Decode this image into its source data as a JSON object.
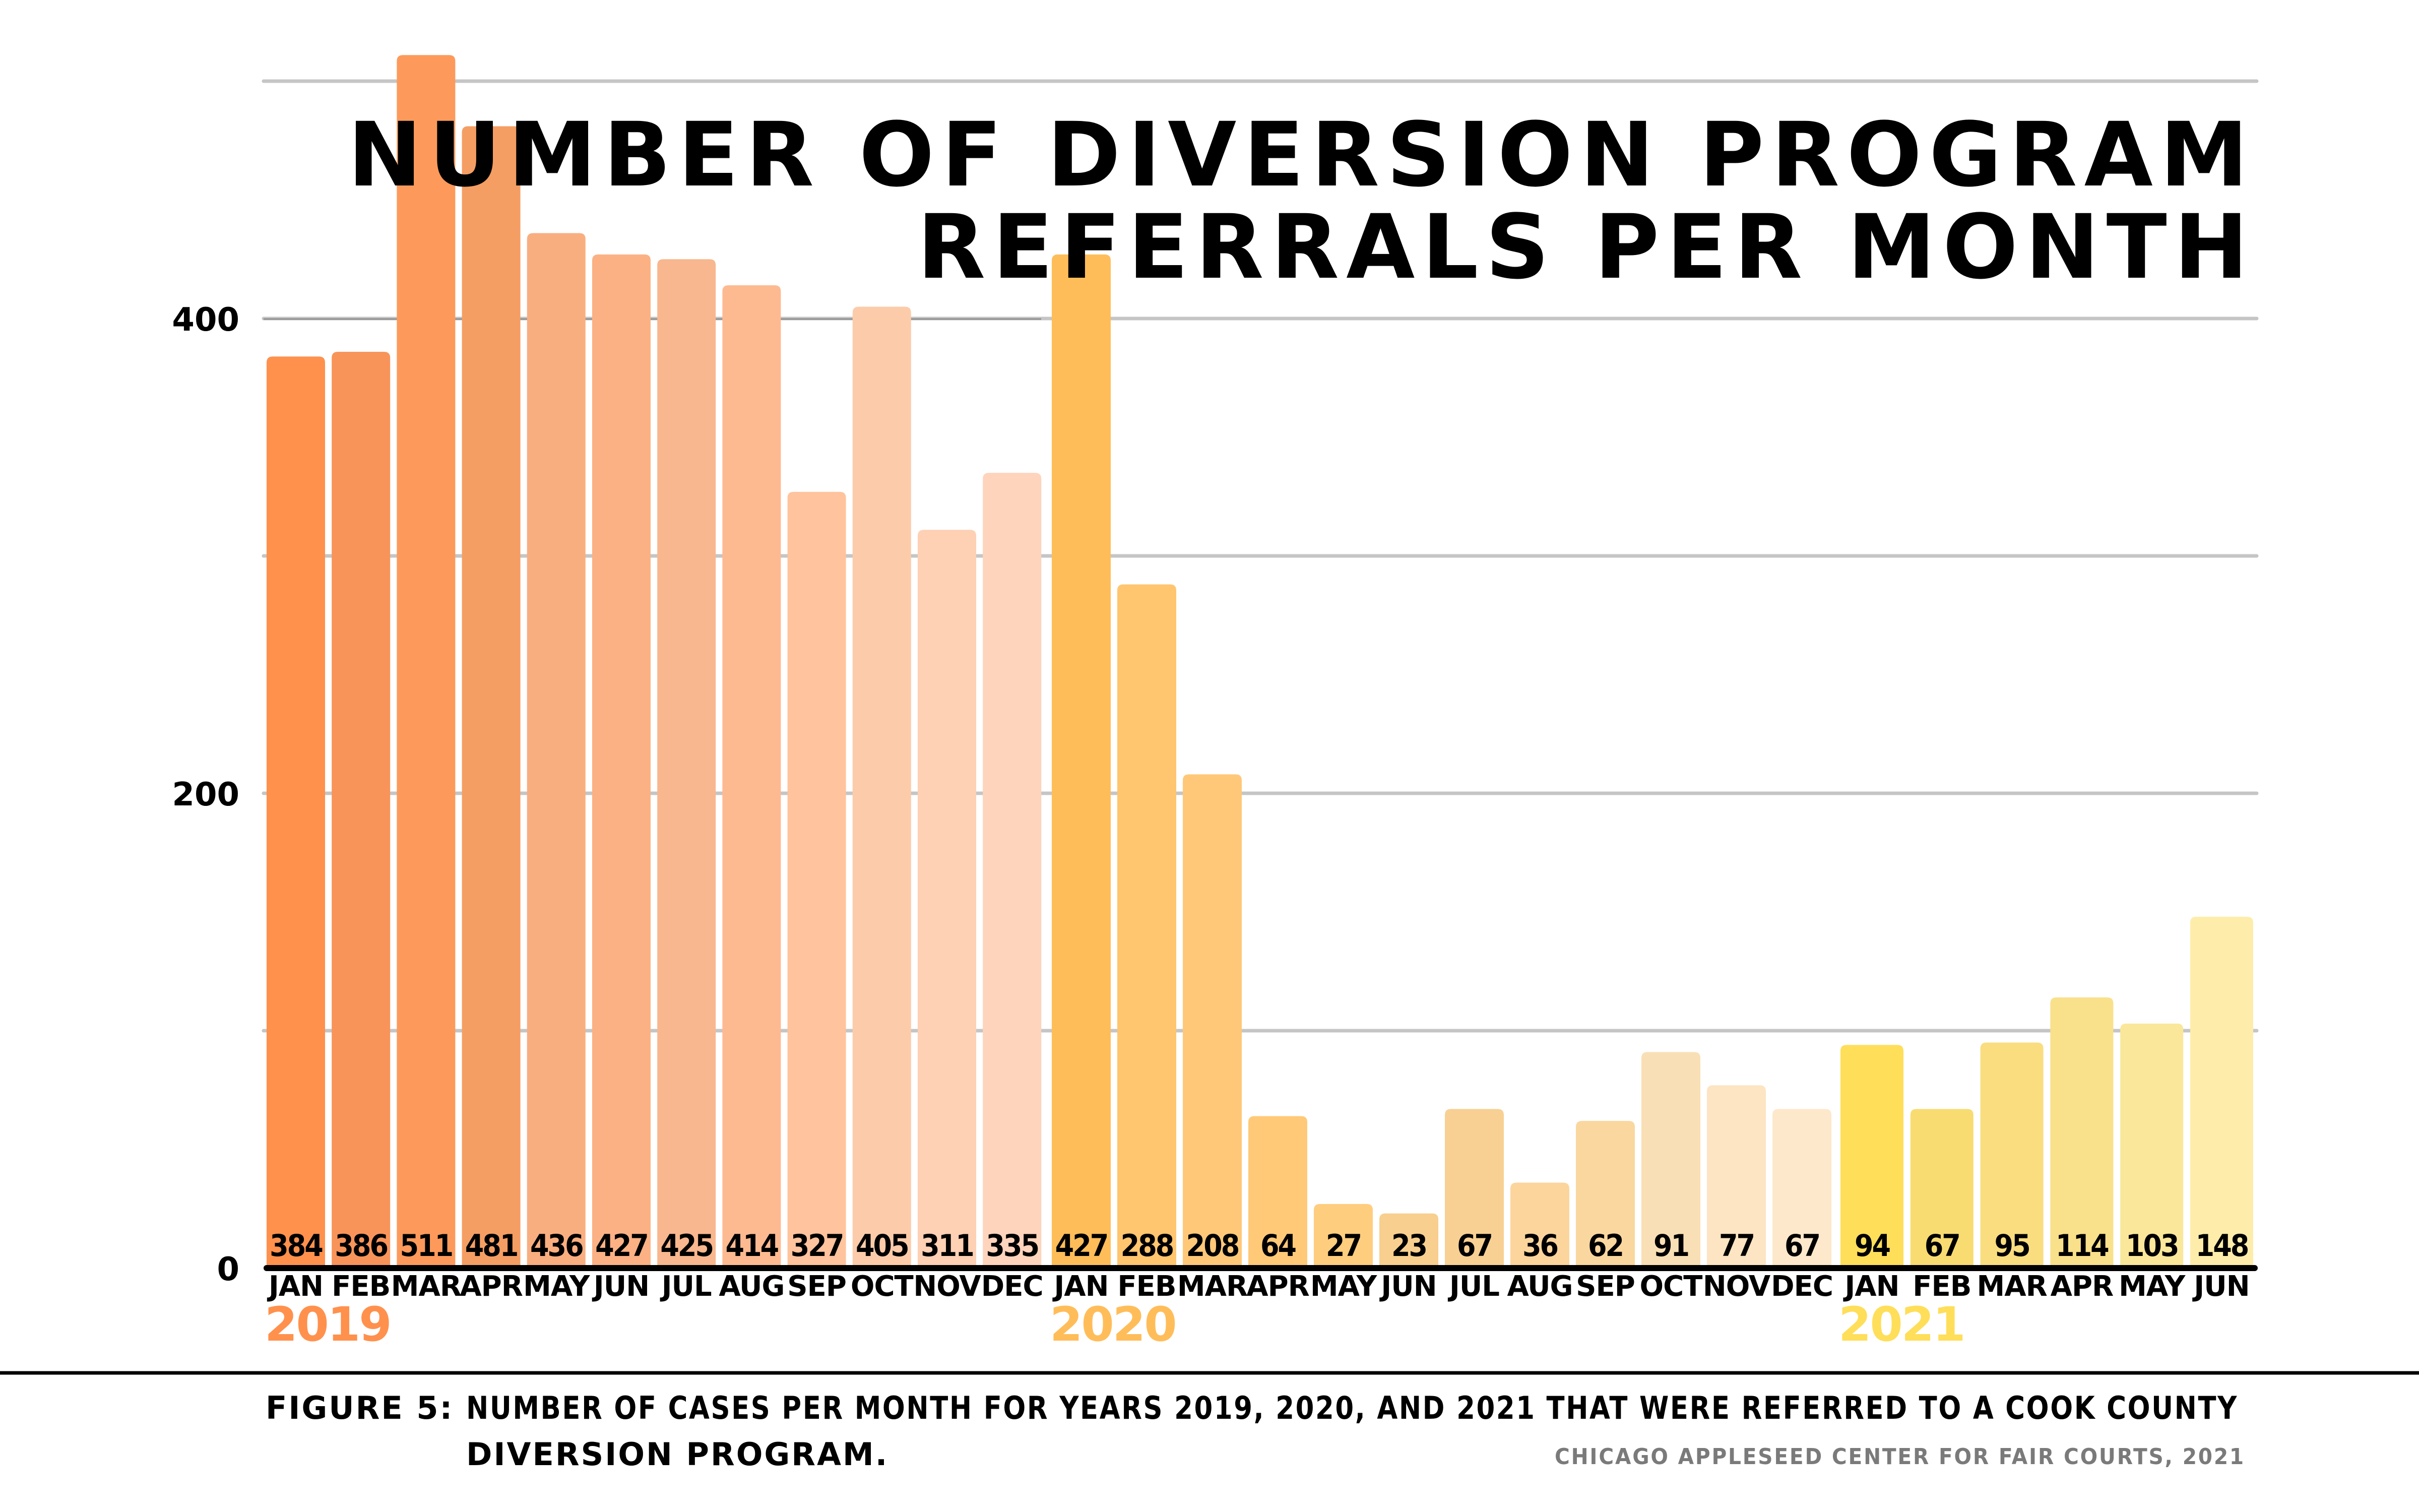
{
  "chart_data": {
    "type": "bar",
    "title_lines": [
      "NUMBER OF DIVERSION PROGRAM",
      "REFERRALS PER MONTH"
    ],
    "xlabel": "",
    "ylabel": "",
    "ylim": [
      0,
      500
    ],
    "yticks": [
      0,
      200,
      400
    ],
    "gridlines": [
      100,
      200,
      300,
      400,
      500
    ],
    "grid": true,
    "legend": "none",
    "groups": [
      {
        "year": "2019",
        "year_color": "#FF914D",
        "categories": [
          "JAN",
          "FEB",
          "MAR",
          "APR",
          "MAY",
          "JUN",
          "JUL",
          "AUG",
          "SEP",
          "OCT",
          "NOV",
          "DEC"
        ],
        "values": [
          384,
          386,
          511,
          481,
          436,
          427,
          425,
          414,
          327,
          405,
          311,
          335
        ],
        "colors": [
          "#FF914D",
          "#F8945A",
          "#FD9A5B",
          "#F59E63",
          "#F9AE80",
          "#FBB184",
          "#F8B78E",
          "#FDBA91",
          "#FFC39D",
          "#FCCCAA",
          "#FED0B4",
          "#FFD4BC"
        ]
      },
      {
        "year": "2020",
        "year_color": "#FFBD59",
        "categories": [
          "JAN",
          "FEB",
          "MAR",
          "APR",
          "MAY",
          "JUN",
          "JUL",
          "AUG",
          "SEP",
          "OCT",
          "NOV",
          "DEC"
        ],
        "values": [
          427,
          288,
          208,
          64,
          27,
          23,
          67,
          36,
          62,
          91,
          77,
          67
        ],
        "colors": [
          "#FFBD59",
          "#FFC56F",
          "#FFC879",
          "#FFC978",
          "#FFCD7E",
          "#F8CF8E",
          "#F8D093",
          "#FCD59C",
          "#FAD79F",
          "#F9DFB5",
          "#FDE4C2",
          "#FEE8CB"
        ]
      },
      {
        "year": "2021",
        "year_color": "#FFDE59",
        "categories": [
          "JAN",
          "FEB",
          "MAR",
          "APR",
          "MAY",
          "JUN"
        ],
        "values": [
          94,
          67,
          95,
          114,
          103,
          148
        ],
        "colors": [
          "#FFDE59",
          "#F8DC72",
          "#F9DD7F",
          "#F9E08A",
          "#FAE79A",
          "#FEEDAA"
        ]
      }
    ]
  },
  "caption": {
    "figure_label": "FIGURE 5:",
    "lines": [
      "NUMBER OF CASES PER MONTH FOR YEARS 2019, 2020, AND 2021 THAT WERE REFERRED TO A COOK COUNTY",
      "DIVERSION PROGRAM."
    ],
    "credit": "CHICAGO APPLESEED CENTER FOR FAIR COURTS, 2021"
  },
  "colors": {
    "gridline": "#C5C5C5",
    "gridline_emphasis": "#909090",
    "axis": "#000000"
  }
}
